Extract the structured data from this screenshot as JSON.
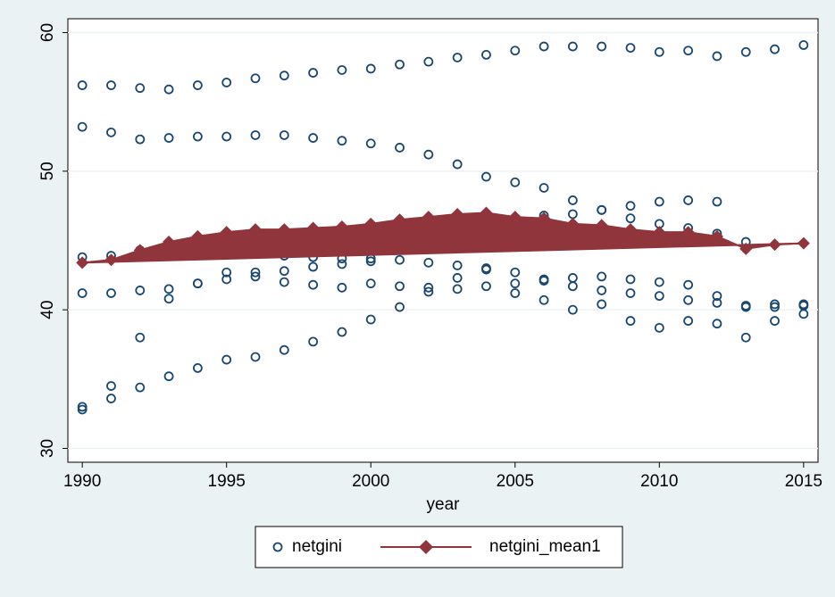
{
  "chart_data": {
    "type": "scatter",
    "x_label": "year",
    "xlim": [
      1989.5,
      2015.5
    ],
    "xticks": [
      1990,
      1995,
      2000,
      2005,
      2010,
      2015
    ],
    "ylim": [
      29,
      61
    ],
    "yticks": [
      30,
      40,
      50,
      60
    ],
    "grid": true,
    "series": [
      {
        "name": "netgini",
        "type": "scatter",
        "color": "#1a476f",
        "x": [
          1990,
          1990,
          1990,
          1990,
          1990,
          1990,
          1991,
          1991,
          1991,
          1991,
          1991,
          1991,
          1992,
          1992,
          1992,
          1992,
          1992,
          1992,
          1993,
          1993,
          1993,
          1993,
          1993,
          1994,
          1994,
          1994,
          1994,
          1994,
          1995,
          1995,
          1995,
          1995,
          1995,
          1996,
          1996,
          1996,
          1996,
          1996,
          1997,
          1997,
          1997,
          1997,
          1997,
          1997,
          1998,
          1998,
          1998,
          1998,
          1998,
          1998,
          1999,
          1999,
          1999,
          1999,
          1999,
          1999,
          2000,
          2000,
          2000,
          2000,
          2000,
          2000,
          2001,
          2001,
          2001,
          2001,
          2001,
          2002,
          2002,
          2002,
          2002,
          2002,
          2003,
          2003,
          2003,
          2003,
          2003,
          2004,
          2004,
          2004,
          2004,
          2004,
          2005,
          2005,
          2005,
          2005,
          2005,
          2006,
          2006,
          2006,
          2006,
          2006,
          2006,
          2007,
          2007,
          2007,
          2007,
          2007,
          2007,
          2008,
          2008,
          2008,
          2008,
          2008,
          2008,
          2009,
          2009,
          2009,
          2009,
          2009,
          2009,
          2010,
          2010,
          2010,
          2010,
          2010,
          2010,
          2011,
          2011,
          2011,
          2011,
          2011,
          2011,
          2012,
          2012,
          2012,
          2012,
          2012,
          2012,
          2013,
          2013,
          2013,
          2013,
          2013,
          2014,
          2014,
          2014,
          2014,
          2015,
          2015,
          2015,
          2015
        ],
        "values": [
          56.2,
          53.2,
          43.8,
          41.2,
          33.0,
          32.8,
          56.2,
          52.8,
          43.9,
          41.2,
          34.5,
          33.6,
          56.0,
          52.3,
          44.3,
          41.4,
          38.0,
          34.4,
          55.9,
          52.4,
          41.5,
          40.8,
          35.2,
          56.2,
          52.5,
          41.9,
          41.9,
          35.8,
          56.4,
          52.5,
          42.7,
          42.2,
          36.4,
          56.7,
          52.6,
          42.7,
          42.4,
          36.6,
          56.9,
          52.6,
          43.9,
          42.8,
          42.0,
          37.1,
          57.1,
          52.4,
          43.8,
          43.1,
          41.8,
          37.7,
          57.3,
          52.2,
          43.7,
          43.3,
          41.6,
          38.4,
          57.4,
          52.0,
          43.7,
          43.5,
          41.9,
          39.3,
          57.7,
          51.7,
          43.6,
          41.7,
          40.2,
          57.9,
          51.2,
          43.4,
          41.6,
          41.3,
          58.2,
          50.5,
          43.2,
          42.3,
          41.5,
          58.4,
          49.6,
          43.0,
          42.9,
          41.7,
          58.7,
          49.2,
          42.7,
          41.9,
          41.2,
          59.0,
          48.8,
          46.8,
          42.2,
          42.1,
          40.7,
          59.0,
          47.9,
          46.9,
          42.3,
          41.7,
          40.0,
          59.0,
          47.2,
          47.2,
          42.4,
          41.4,
          40.4,
          58.9,
          47.5,
          46.6,
          42.2,
          41.2,
          39.2,
          58.6,
          47.8,
          46.2,
          42.0,
          41.0,
          38.7,
          58.7,
          47.9,
          45.9,
          41.8,
          40.7,
          39.2,
          58.3,
          47.8,
          45.5,
          41.0,
          40.5,
          39.0,
          58.6,
          44.9,
          40.3,
          40.2,
          38.0,
          58.8,
          40.4,
          40.2,
          39.2,
          59.1,
          40.4,
          40.3,
          39.7
        ]
      },
      {
        "name": "netgini_mean1",
        "type": "line",
        "color": "#90353b",
        "x": [
          1990,
          1991,
          1992,
          1993,
          1994,
          1995,
          1996,
          1997,
          1998,
          1999,
          2000,
          2001,
          2002,
          2003,
          2004,
          2005,
          2006,
          2007,
          2008,
          2009,
          2010,
          2011,
          2012,
          2013,
          2014,
          2015
        ],
        "values": [
          43.4,
          43.6,
          44.3,
          44.9,
          45.3,
          45.6,
          45.8,
          45.8,
          45.9,
          46.0,
          46.2,
          46.5,
          46.7,
          46.9,
          47.0,
          46.7,
          46.6,
          46.2,
          46.1,
          45.8,
          45.6,
          45.6,
          45.3,
          44.4,
          44.7,
          44.8
        ]
      }
    ]
  }
}
